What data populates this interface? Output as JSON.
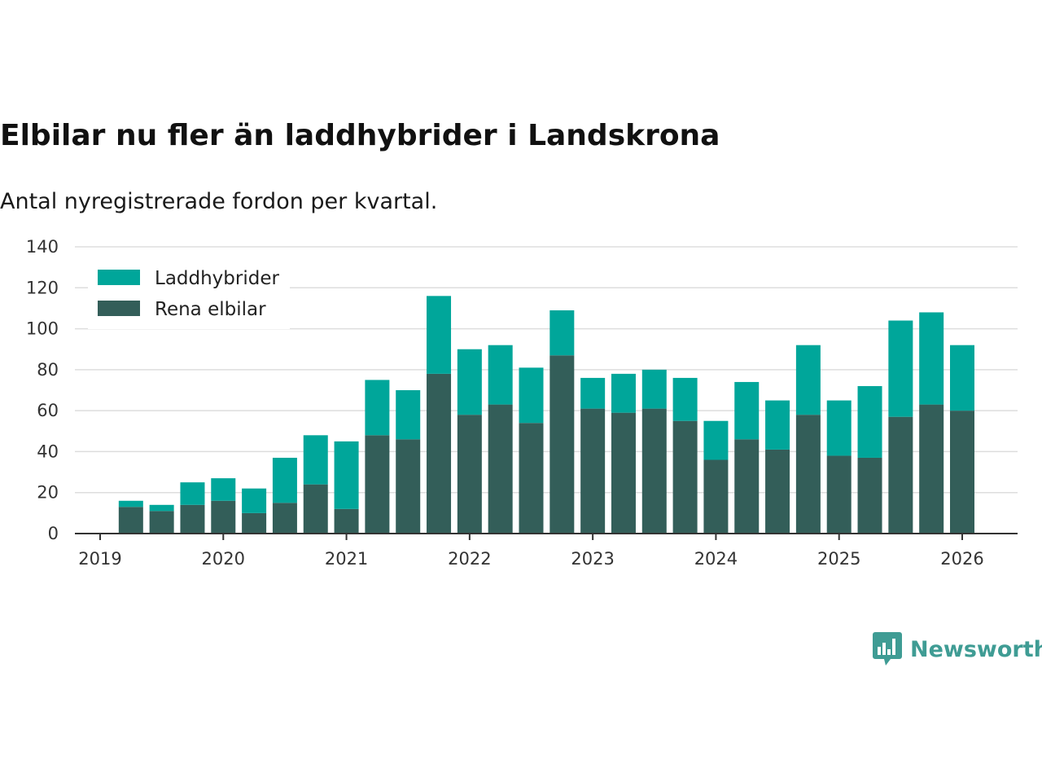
{
  "header": {
    "title": "Elbilar nu fler än laddhybrider i Landskrona",
    "subtitle": "Antal nyregistrerade fordon per kvartal."
  },
  "brand": {
    "name": "Newsworthy",
    "icon": "bar-chart-speech-icon",
    "color": "#3f9c94"
  },
  "colors": {
    "laddhybrider": "#00a69a",
    "rena_elbilar": "#335e59",
    "grid": "#dddddd",
    "axis": "#333333"
  },
  "chart_data": {
    "type": "bar",
    "stacked": true,
    "title": "Elbilar nu fler än laddhybrider i Landskrona",
    "subtitle": "Antal nyregistrerade fordon per kvartal.",
    "xlabel": "",
    "ylabel": "",
    "ylim": [
      0,
      140
    ],
    "yticks": [
      0,
      20,
      40,
      60,
      80,
      100,
      120,
      140
    ],
    "xlim": [
      2019,
      2026.5
    ],
    "xticks": [
      2019,
      2020,
      2021,
      2022,
      2023,
      2024,
      2025,
      2026
    ],
    "xtick_labels": [
      "2019",
      "2020",
      "2021",
      "2022",
      "2023",
      "2024",
      "2025",
      "2026"
    ],
    "grid": true,
    "legend_position": "top-left",
    "categories": [
      "2019 Q2",
      "2019 Q3",
      "2019 Q4",
      "2020 Q1",
      "2020 Q2",
      "2020 Q3",
      "2020 Q4",
      "2021 Q1",
      "2021 Q2",
      "2021 Q3",
      "2021 Q4",
      "2022 Q1",
      "2022 Q2",
      "2022 Q3",
      "2022 Q4",
      "2023 Q1",
      "2023 Q2",
      "2023 Q3",
      "2023 Q4",
      "2024 Q1",
      "2024 Q2",
      "2024 Q3",
      "2024 Q4",
      "2025 Q1",
      "2025 Q2",
      "2025 Q3",
      "2025 Q4",
      "2026 Q1"
    ],
    "x": [
      2019.25,
      2019.5,
      2019.75,
      2020.0,
      2020.25,
      2020.5,
      2020.75,
      2021.0,
      2021.25,
      2021.5,
      2021.75,
      2022.0,
      2022.25,
      2022.5,
      2022.75,
      2023.0,
      2023.25,
      2023.5,
      2023.75,
      2024.0,
      2024.25,
      2024.5,
      2024.75,
      2025.0,
      2025.25,
      2025.5,
      2025.75,
      2026.0
    ],
    "series": [
      {
        "name": "Rena elbilar",
        "color": "#335e59",
        "values": [
          13,
          11,
          14,
          16,
          10,
          15,
          24,
          12,
          48,
          46,
          78,
          58,
          63,
          54,
          87,
          61,
          59,
          61,
          55,
          36,
          46,
          41,
          58,
          38,
          37,
          57,
          63,
          60
        ]
      },
      {
        "name": "Laddhybrider",
        "color": "#00a69a",
        "values": [
          3,
          3,
          11,
          11,
          12,
          22,
          24,
          33,
          27,
          24,
          38,
          32,
          29,
          27,
          22,
          15,
          19,
          19,
          21,
          19,
          28,
          24,
          34,
          27,
          35,
          47,
          45,
          32
        ]
      }
    ],
    "legend": [
      "Laddhybrider",
      "Rena elbilar"
    ]
  }
}
